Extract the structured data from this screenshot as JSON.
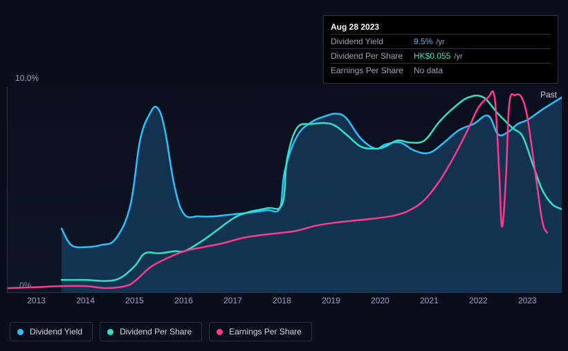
{
  "tooltip": {
    "date": "Aug 28 2023",
    "rows": [
      {
        "label": "Dividend Yield",
        "value": "9.5%",
        "suffix": "/yr",
        "color": "#2dc0ff"
      },
      {
        "label": "Dividend Per Share",
        "value": "HK$0.055",
        "suffix": "/yr",
        "color": "#31e3c6"
      },
      {
        "label": "Earnings Per Share",
        "value": "No data",
        "suffix": "",
        "color": "#9aa3b5"
      }
    ]
  },
  "chart": {
    "type": "line",
    "background_color": "#0a0f1c",
    "grid_color": "#2a3244",
    "label_color": "#9aa3b5",
    "text_color": "#cfd6e4",
    "past_label": "Past",
    "ylim": [
      0,
      10
    ],
    "y_ticks": [
      {
        "value": 0,
        "label": "0%"
      },
      {
        "value": 10,
        "label": "10.0%"
      }
    ],
    "xlim": [
      2012.4,
      2023.7
    ],
    "x_ticks": [
      "2013",
      "2014",
      "2015",
      "2016",
      "2017",
      "2018",
      "2019",
      "2020",
      "2021",
      "2022",
      "2023"
    ],
    "area_series": {
      "name": "Dividend Yield",
      "color": "#2dc0ff",
      "fill_color": "#1a5a8a",
      "fill_opacity": 0.45,
      "stroke_width": 2.5,
      "points": [
        [
          2013.5,
          3.1
        ],
        [
          2013.7,
          2.3
        ],
        [
          2014.0,
          2.2
        ],
        [
          2014.3,
          2.3
        ],
        [
          2014.6,
          2.6
        ],
        [
          2014.9,
          4.2
        ],
        [
          2015.1,
          7.4
        ],
        [
          2015.3,
          8.7
        ],
        [
          2015.45,
          9.0
        ],
        [
          2015.6,
          8.0
        ],
        [
          2015.8,
          5.2
        ],
        [
          2016.0,
          3.8
        ],
        [
          2016.3,
          3.7
        ],
        [
          2016.6,
          3.7
        ],
        [
          2017.0,
          3.8
        ],
        [
          2017.4,
          3.9
        ],
        [
          2017.7,
          4.0
        ],
        [
          2017.95,
          4.1
        ],
        [
          2018.05,
          5.9
        ],
        [
          2018.3,
          7.6
        ],
        [
          2018.6,
          8.3
        ],
        [
          2018.9,
          8.6
        ],
        [
          2019.1,
          8.7
        ],
        [
          2019.3,
          8.5
        ],
        [
          2019.6,
          7.5
        ],
        [
          2019.9,
          7.0
        ],
        [
          2020.1,
          7.2
        ],
        [
          2020.4,
          7.3
        ],
        [
          2020.7,
          6.9
        ],
        [
          2021.0,
          6.8
        ],
        [
          2021.3,
          7.3
        ],
        [
          2021.6,
          7.9
        ],
        [
          2021.9,
          8.2
        ],
        [
          2022.2,
          8.6
        ],
        [
          2022.4,
          7.7
        ],
        [
          2022.6,
          7.8
        ],
        [
          2022.8,
          8.2
        ],
        [
          2023.0,
          8.4
        ],
        [
          2023.3,
          8.9
        ],
        [
          2023.5,
          9.2
        ],
        [
          2023.7,
          9.5
        ]
      ]
    },
    "line_series": [
      {
        "name": "Dividend Per Share",
        "color": "#31e3c6",
        "stroke_width": 2.5,
        "points": [
          [
            2013.5,
            0.6
          ],
          [
            2014.0,
            0.6
          ],
          [
            2014.4,
            0.55
          ],
          [
            2014.7,
            0.7
          ],
          [
            2015.0,
            1.3
          ],
          [
            2015.2,
            1.9
          ],
          [
            2015.5,
            1.9
          ],
          [
            2015.8,
            2.0
          ],
          [
            2016.0,
            2.0
          ],
          [
            2016.3,
            2.4
          ],
          [
            2016.6,
            2.9
          ],
          [
            2017.0,
            3.6
          ],
          [
            2017.3,
            3.9
          ],
          [
            2017.7,
            4.1
          ],
          [
            2018.0,
            4.3
          ],
          [
            2018.1,
            6.5
          ],
          [
            2018.3,
            8.0
          ],
          [
            2018.6,
            8.2
          ],
          [
            2019.0,
            8.2
          ],
          [
            2019.3,
            7.7
          ],
          [
            2019.6,
            7.1
          ],
          [
            2019.9,
            7.0
          ],
          [
            2020.1,
            7.1
          ],
          [
            2020.35,
            7.4
          ],
          [
            2020.6,
            7.3
          ],
          [
            2020.9,
            7.4
          ],
          [
            2021.2,
            8.3
          ],
          [
            2021.5,
            9.0
          ],
          [
            2021.8,
            9.5
          ],
          [
            2022.1,
            9.5
          ],
          [
            2022.4,
            8.7
          ],
          [
            2022.7,
            8.0
          ],
          [
            2022.9,
            7.6
          ],
          [
            2023.1,
            6.3
          ],
          [
            2023.3,
            5.0
          ],
          [
            2023.5,
            4.3
          ],
          [
            2023.7,
            4.05
          ]
        ]
      },
      {
        "name": "Earnings Per Share",
        "color": "#ff3a8c",
        "stroke_width": 2.5,
        "points": [
          [
            2012.4,
            0.2
          ],
          [
            2013.0,
            0.25
          ],
          [
            2013.5,
            0.3
          ],
          [
            2014.0,
            0.3
          ],
          [
            2014.4,
            0.2
          ],
          [
            2014.8,
            0.3
          ],
          [
            2015.0,
            0.55
          ],
          [
            2015.3,
            1.2
          ],
          [
            2015.6,
            1.6
          ],
          [
            2016.0,
            2.0
          ],
          [
            2016.4,
            2.2
          ],
          [
            2016.8,
            2.4
          ],
          [
            2017.2,
            2.65
          ],
          [
            2017.6,
            2.8
          ],
          [
            2018.0,
            2.9
          ],
          [
            2018.3,
            3.0
          ],
          [
            2018.7,
            3.25
          ],
          [
            2019.1,
            3.4
          ],
          [
            2019.5,
            3.5
          ],
          [
            2019.9,
            3.6
          ],
          [
            2020.3,
            3.75
          ],
          [
            2020.6,
            4.0
          ],
          [
            2020.9,
            4.5
          ],
          [
            2021.2,
            5.4
          ],
          [
            2021.5,
            6.6
          ],
          [
            2021.8,
            8.0
          ],
          [
            2022.0,
            9.0
          ],
          [
            2022.2,
            9.5
          ],
          [
            2022.33,
            9.5
          ],
          [
            2022.42,
            6.0
          ],
          [
            2022.48,
            3.2
          ],
          [
            2022.56,
            5.5
          ],
          [
            2022.63,
            9.2
          ],
          [
            2022.75,
            9.6
          ],
          [
            2022.88,
            9.5
          ],
          [
            2023.0,
            8.5
          ],
          [
            2023.15,
            6.0
          ],
          [
            2023.3,
            3.5
          ],
          [
            2023.4,
            2.9
          ]
        ]
      }
    ]
  },
  "legend": {
    "items": [
      {
        "name": "dividend-yield",
        "label": "Dividend Yield",
        "color": "#2dc0ff"
      },
      {
        "name": "dividend-per-share",
        "label": "Dividend Per Share",
        "color": "#31e3c6"
      },
      {
        "name": "earnings-per-share",
        "label": "Earnings Per Share",
        "color": "#ff3a8c"
      }
    ]
  }
}
